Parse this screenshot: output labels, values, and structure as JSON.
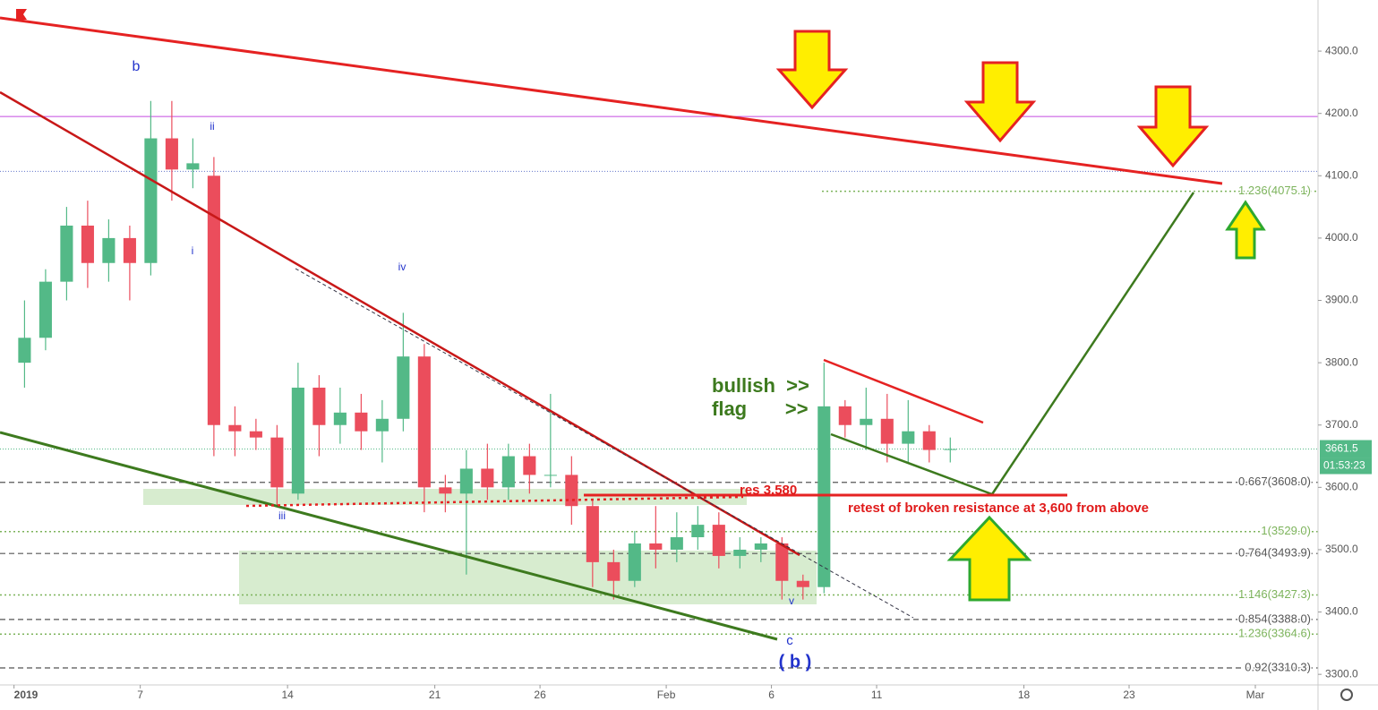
{
  "chart_data": {
    "type": "candlestick",
    "x": [
      "2019-01-01",
      "2019-01-02",
      "2019-01-03",
      "2019-01-04",
      "2019-01-05",
      "2019-01-06",
      "2019-01-07",
      "2019-01-08",
      "2019-01-09",
      "2019-01-10",
      "2019-01-11",
      "2019-01-12",
      "2019-01-13",
      "2019-01-14",
      "2019-01-15",
      "2019-01-16",
      "2019-01-17",
      "2019-01-18",
      "2019-01-19",
      "2019-01-20",
      "2019-01-21",
      "2019-01-22",
      "2019-01-23",
      "2019-01-24",
      "2019-01-25",
      "2019-01-26",
      "2019-01-27",
      "2019-01-28",
      "2019-01-29",
      "2019-01-30",
      "2019-01-31",
      "2019-02-01",
      "2019-02-02",
      "2019-02-03",
      "2019-02-04",
      "2019-02-05",
      "2019-02-06",
      "2019-02-07",
      "2019-02-08",
      "2019-02-09",
      "2019-02-10",
      "2019-02-11",
      "2019-02-12",
      "2019-02-13",
      "2019-02-14"
    ],
    "open": [
      3800,
      3840,
      3930,
      4020,
      3960,
      4000,
      3960,
      4160,
      4110,
      4100,
      3700,
      3690,
      3680,
      3590,
      3760,
      3700,
      3720,
      3690,
      3710,
      3810,
      3600,
      3590,
      3630,
      3600,
      3650,
      3620,
      3620,
      3570,
      3480,
      3450,
      3510,
      3500,
      3520,
      3540,
      3490,
      3500,
      3510,
      3450,
      3440,
      3730,
      3700,
      3710,
      3670,
      3690,
      3660
    ],
    "high": [
      3900,
      3950,
      4050,
      4060,
      4030,
      4020,
      4220,
      4220,
      4160,
      4130,
      3730,
      3710,
      3700,
      3800,
      3780,
      3760,
      3750,
      3740,
      3880,
      3830,
      3620,
      3660,
      3670,
      3670,
      3670,
      3750,
      3650,
      3580,
      3500,
      3530,
      3570,
      3560,
      3570,
      3560,
      3520,
      3520,
      3520,
      3460,
      3800,
      3740,
      3760,
      3750,
      3740,
      3700,
      3680
    ],
    "low": [
      3760,
      3820,
      3900,
      3920,
      3930,
      3900,
      3940,
      4060,
      4080,
      3650,
      3650,
      3660,
      3570,
      3580,
      3650,
      3670,
      3660,
      3640,
      3690,
      3560,
      3560,
      3460,
      3580,
      3580,
      3590,
      3600,
      3540,
      3440,
      3420,
      3440,
      3470,
      3480,
      3500,
      3470,
      3470,
      3480,
      3420,
      3420,
      3430,
      3680,
      3660,
      3640,
      3640,
      3640,
      3640
    ],
    "close": [
      3840,
      3930,
      4020,
      3960,
      4000,
      3960,
      4160,
      4110,
      4120,
      3700,
      3690,
      3680,
      3600,
      3760,
      3700,
      3720,
      3690,
      3710,
      3810,
      3600,
      3590,
      3630,
      3600,
      3650,
      3620,
      3620,
      3570,
      3480,
      3450,
      3510,
      3500,
      3520,
      3540,
      3490,
      3500,
      3510,
      3450,
      3440,
      3730,
      3700,
      3710,
      3670,
      3690,
      3660,
      3661.5
    ],
    "up_color": "#53b987",
    "down_color": "#eb4d5c",
    "xlim": [
      "2018-12-31T08:00",
      "2019-03-03T23:30"
    ],
    "xticks": [
      {
        "value": "2019-01-01",
        "label": "2019"
      },
      {
        "value": "2019-01-07",
        "label": "7"
      },
      {
        "value": "2019-01-14",
        "label": "14"
      },
      {
        "value": "2019-01-21",
        "label": "21"
      },
      {
        "value": "2019-01-26",
        "label": "26"
      },
      {
        "value": "2019-02-01",
        "label": "Feb"
      },
      {
        "value": "2019-02-06",
        "label": "6"
      },
      {
        "value": "2019-02-11",
        "label": "11"
      },
      {
        "value": "2019-02-18",
        "label": "18"
      },
      {
        "value": "2019-02-23",
        "label": "23"
      },
      {
        "value": "2019-03-01",
        "label": "Mar"
      }
    ],
    "ylim": [
      3283,
      4382
    ],
    "yticks": [
      {
        "value": 4300,
        "label": "4300.0"
      },
      {
        "value": 4200,
        "label": "4200.0"
      },
      {
        "value": 4100,
        "label": "4100.0"
      },
      {
        "value": 4000,
        "label": "4000.0"
      },
      {
        "value": 3900,
        "label": "3900.0"
      },
      {
        "value": 3800,
        "label": "3800.0"
      },
      {
        "value": 3700,
        "label": "3700.0"
      },
      {
        "value": 3600,
        "label": "3600.0"
      },
      {
        "value": 3500,
        "label": "3500.0"
      },
      {
        "value": 3400,
        "label": "3400.0"
      },
      {
        "value": 3300,
        "label": "3300.0"
      }
    ],
    "last_price": 3661.5,
    "countdown": "01:53:23",
    "levels": [
      {
        "label": "0.667(3608.0)",
        "value": 3608,
        "color": "#555555",
        "style": "dashed"
      },
      {
        "label": "0.764(3493.9)",
        "value": 3493.9,
        "color": "#555555",
        "style": "dashed"
      },
      {
        "label": "0.854(3388.0)",
        "value": 3388,
        "color": "#555555",
        "style": "dashed"
      },
      {
        "label": "0.92(3310.3)",
        "value": 3310.3,
        "color": "#555555",
        "style": "dashed"
      },
      {
        "label": "1(3529.0)",
        "value": 3529,
        "color": "#7cb35b",
        "style": "dotted"
      },
      {
        "label": "1.146(3427.3)",
        "value": 3427.3,
        "color": "#7cb35b",
        "style": "dotted"
      },
      {
        "label": "1.236(3364.6)",
        "value": 3364.6,
        "color": "#7cb35b",
        "style": "dotted"
      },
      {
        "label": "1.236(4075.1)",
        "value": 4075.1,
        "color": "#7cb35b",
        "style": "dotted"
      }
    ],
    "horizontal_lines": [
      {
        "value": 4195,
        "color": "#c44ae0"
      },
      {
        "value": 4107,
        "color": "#6677cc"
      }
    ],
    "annotations": [
      "b",
      "ii",
      "i",
      "iv",
      "iii",
      "v",
      "c",
      "( b )",
      "bullish  >>",
      "flag       >>",
      "res 3,580",
      "retest of broken resistance at 3,600 from above"
    ]
  }
}
